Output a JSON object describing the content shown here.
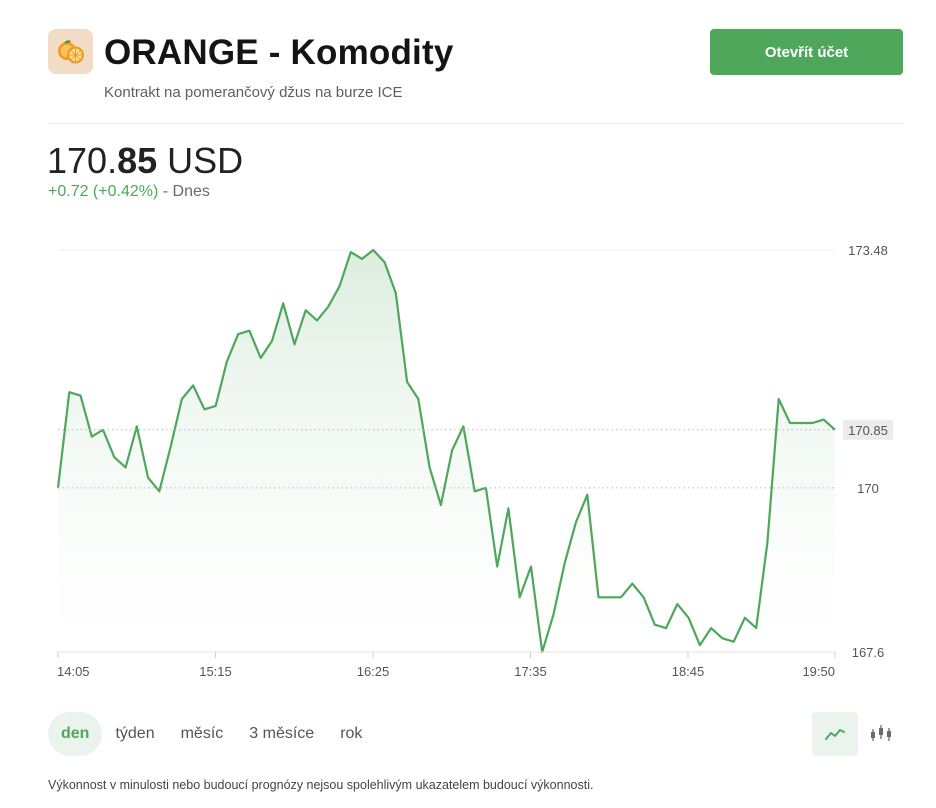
{
  "header": {
    "logo_icon": "orange-icon",
    "title": "ORANGE - Komodity",
    "subtitle": "Kontrakt na pomerančový džus na burze ICE",
    "cta_label": "Otevřít účet"
  },
  "quote": {
    "price_int": "170.",
    "price_dec": "85",
    "currency": "USD",
    "change": "+0.72 (+0.42%)",
    "period": "- Dnes"
  },
  "colors": {
    "accent": "#4ea75b",
    "accent_light": "#eaf4ec"
  },
  "chart_data": {
    "type": "area",
    "ylim": [
      167.6,
      173.48
    ],
    "x_ticks": [
      "14:05",
      "15:15",
      "16:25",
      "17:35",
      "18:45",
      "19:50"
    ],
    "y_labels": [
      "173.48",
      "170.85",
      "170",
      "167.6"
    ],
    "current_value": 170.85,
    "reference_value": 170,
    "series": [
      {
        "values": [
          170.0,
          171.4,
          171.35,
          170.75,
          170.85,
          170.45,
          170.3,
          170.9,
          170.15,
          169.95,
          170.6,
          171.3,
          171.5,
          171.15,
          171.2,
          171.85,
          172.25,
          172.3,
          171.9,
          172.15,
          172.7,
          172.1,
          172.6,
          172.45,
          172.65,
          172.95,
          173.45,
          173.35,
          173.48,
          173.3,
          172.85,
          171.55,
          171.3,
          170.3,
          169.75,
          170.55,
          170.9,
          169.95,
          170.0,
          168.85,
          169.7,
          168.4,
          168.85,
          167.6,
          168.15,
          168.9,
          169.5,
          169.9,
          168.4,
          168.4,
          168.4,
          168.6,
          168.4,
          168.0,
          167.95,
          168.3,
          168.1,
          167.7,
          167.95,
          167.8,
          167.75,
          168.1,
          167.95,
          169.2,
          171.3,
          170.95,
          170.95,
          170.95,
          171.0,
          170.85
        ]
      }
    ]
  },
  "ranges": [
    "den",
    "týden",
    "měsíc",
    "3 měsíce",
    "rok"
  ],
  "active_range": "den",
  "chart_type_icons": [
    "line-chart-icon",
    "candlestick-icon"
  ],
  "disclaimer": "Výkonnost v minulosti nebo budoucí prognózy nejsou spolehlivým ukazatelem budoucí výkonnosti."
}
